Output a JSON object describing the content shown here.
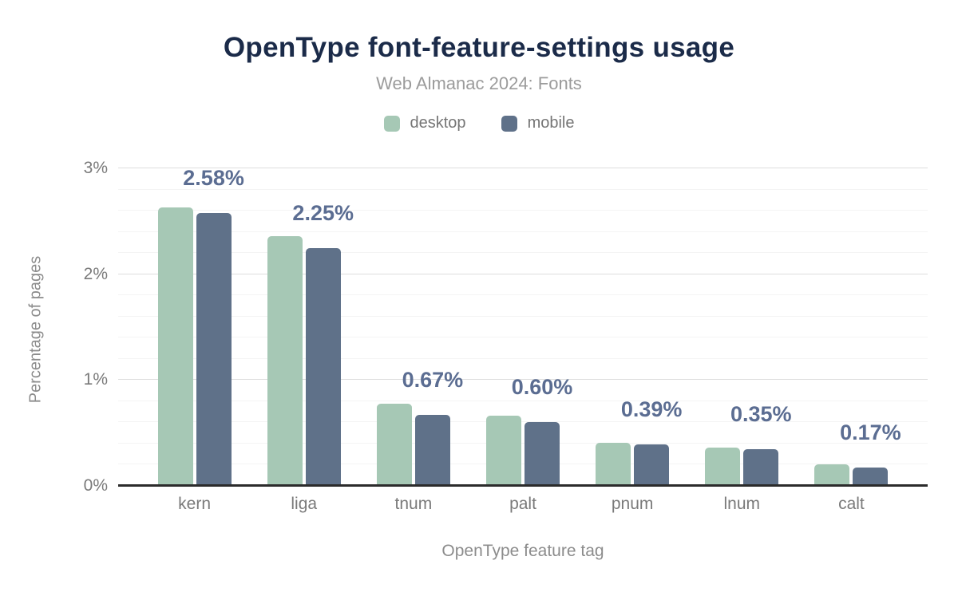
{
  "chart_data": {
    "type": "bar",
    "title": "OpenType font-feature-settings usage",
    "subtitle": "Web Almanac 2024: Fonts",
    "categories": [
      "kern",
      "liga",
      "tnum",
      "palt",
      "pnum",
      "lnum",
      "calt"
    ],
    "series": [
      {
        "name": "desktop",
        "color": "#a6c8b5",
        "values": [
          2.63,
          2.36,
          0.78,
          0.66,
          0.41,
          0.36,
          0.2
        ]
      },
      {
        "name": "mobile",
        "color": "#5f7189",
        "values": [
          2.58,
          2.25,
          0.67,
          0.6,
          0.39,
          0.35,
          0.17
        ]
      }
    ],
    "bar_labels": [
      "2.58%",
      "2.25%",
      "0.67%",
      "0.60%",
      "0.39%",
      "0.35%",
      "0.17%"
    ],
    "annotated_series": "mobile",
    "xlabel": "OpenType feature tag",
    "ylabel": "Percentage of pages",
    "ylim": [
      0,
      3
    ],
    "yticks": [
      {
        "value": 0,
        "label": "0%"
      },
      {
        "value": 1,
        "label": "1%"
      },
      {
        "value": 2,
        "label": "2%"
      },
      {
        "value": 3,
        "label": "3%"
      }
    ],
    "grid": {
      "major_step": 1,
      "minor_step": 0.2
    },
    "legend_position": "top"
  },
  "colors": {
    "title": "#1b2b49",
    "subtitle": "#9b9b9b",
    "legend_text": "#757575",
    "axis_text": "#7a7a7a",
    "axis_title_text": "#8c8c8c",
    "bar_label": "#5b6d92",
    "gridline_minor": "#f4f4f4",
    "gridline_major": "#dedede",
    "axis_line": "#2b2b2b",
    "desktop": "#a6c8b5",
    "mobile": "#5f7189"
  }
}
